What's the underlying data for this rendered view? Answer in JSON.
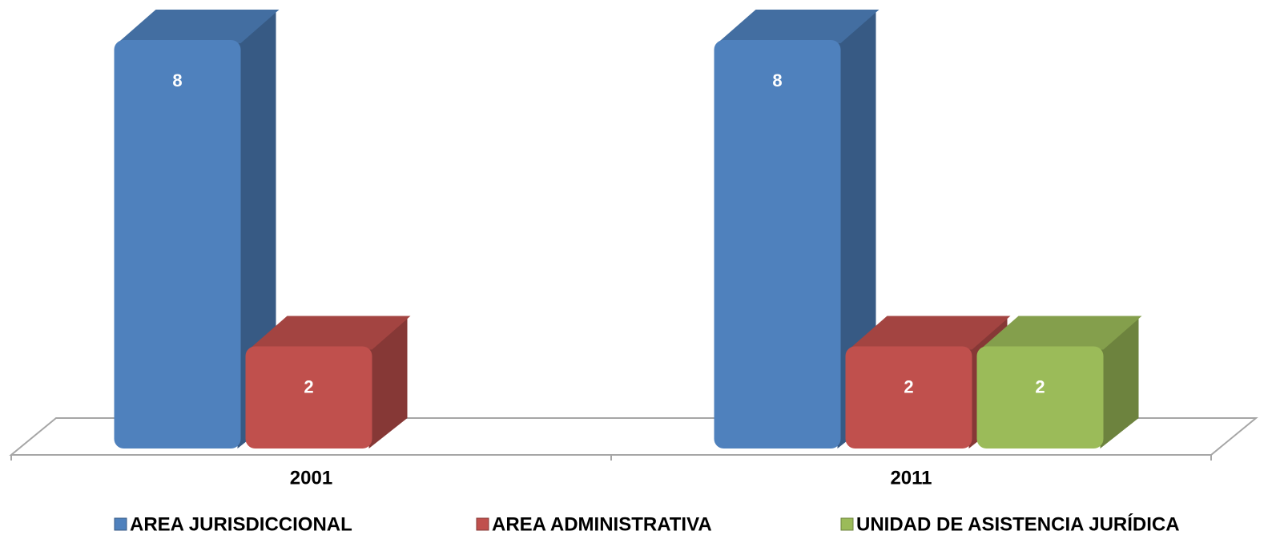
{
  "chart_data": {
    "type": "bar3d",
    "categories": [
      "2001",
      "2011"
    ],
    "series": [
      {
        "name": "AREA JURISDICCIONAL",
        "color": "#4f81bd",
        "values": [
          8,
          8
        ]
      },
      {
        "name": "AREA ADMINISTRATIVA",
        "color": "#c0504d",
        "values": [
          2,
          2
        ]
      },
      {
        "name": "UNIDAD DE ASISTENCIA JURÍDICA",
        "color": "#9bbb59",
        "values": [
          null,
          2
        ]
      }
    ],
    "legend": "bottom"
  }
}
